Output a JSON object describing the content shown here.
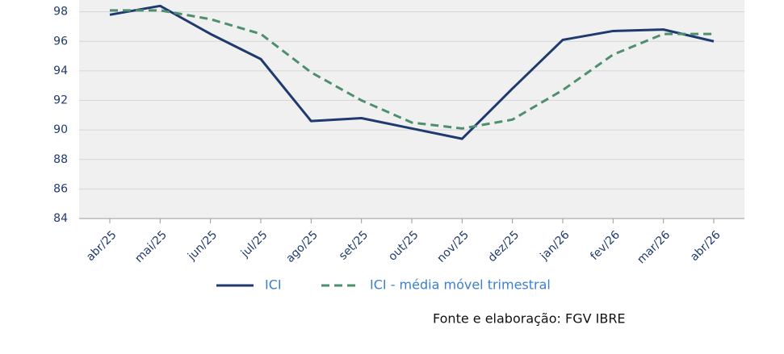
{
  "chart_data": {
    "type": "line",
    "categories": [
      "abr/25",
      "mai/25",
      "jun/25",
      "jul/25",
      "ago/25",
      "set/25",
      "out/25",
      "nov/25",
      "dez/25",
      "jan/26",
      "fev/26",
      "mar/26",
      "abr/26"
    ],
    "series": [
      {
        "name": "ICI",
        "color": "#1f3a6e",
        "dashed": false,
        "values": [
          97.8,
          98.4,
          96.5,
          94.8,
          90.6,
          90.8,
          90.1,
          89.4,
          92.8,
          96.1,
          96.7,
          96.8,
          96.0
        ]
      },
      {
        "name": "ICI - média móvel trimestral",
        "color": "#4e8f6e",
        "dashed": true,
        "values": [
          98.1,
          98.1,
          97.5,
          96.5,
          93.9,
          92.0,
          90.5,
          90.1,
          90.7,
          92.7,
          95.1,
          96.5,
          96.5
        ]
      }
    ],
    "ylim": [
      84,
      98.8
    ],
    "yticks": [
      84,
      86,
      88,
      90,
      92,
      94,
      96,
      98
    ],
    "grid": true,
    "source": "Fonte e elaboração: FGV IBRE"
  }
}
